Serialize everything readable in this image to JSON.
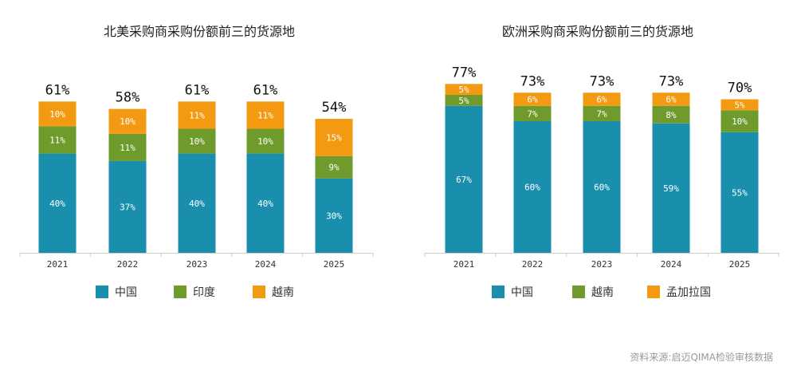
{
  "chart_data": [
    {
      "type": "bar",
      "stacked": true,
      "title": "北美采购商采购份额前三的货源地",
      "categories": [
        "2021",
        "2022",
        "2023",
        "2024",
        "2025"
      ],
      "series": [
        {
          "name": "中国",
          "color": "#1a8fad",
          "values": [
            40,
            37,
            40,
            40,
            30
          ]
        },
        {
          "name": "印度",
          "color": "#6f9a2c",
          "values": [
            11,
            11,
            10,
            10,
            9
          ]
        },
        {
          "name": "越南",
          "color": "#f39a12",
          "values": [
            10,
            10,
            11,
            11,
            15
          ]
        }
      ],
      "totals": [
        "61%",
        "58%",
        "61%",
        "61%",
        "54%"
      ],
      "legend": "bottom",
      "grid": false
    },
    {
      "type": "bar",
      "stacked": true,
      "title": "欧洲采购商采购份额前三的货源地",
      "categories": [
        "2021",
        "2022",
        "2023",
        "2024",
        "2025"
      ],
      "series": [
        {
          "name": "中国",
          "color": "#1a8fad",
          "values": [
            67,
            60,
            60,
            59,
            55
          ]
        },
        {
          "name": "越南",
          "color": "#6f9a2c",
          "values": [
            5,
            7,
            7,
            8,
            10
          ]
        },
        {
          "name": "孟加拉国",
          "color": "#f39a12",
          "values": [
            5,
            6,
            6,
            6,
            5
          ]
        }
      ],
      "totals": [
        "77%",
        "73%",
        "73%",
        "73%",
        "70%"
      ],
      "legend": "bottom",
      "grid": false
    }
  ],
  "source": "资料来源:启迈QIMA检验审核数据"
}
